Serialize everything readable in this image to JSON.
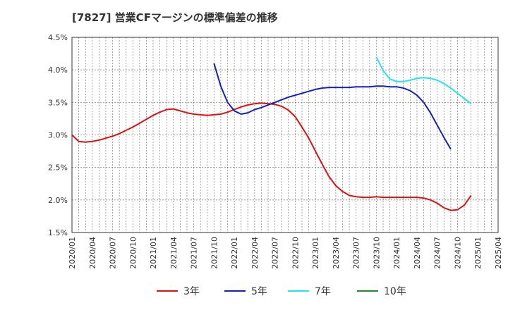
{
  "chart_data": {
    "type": "line",
    "title": "[7827]  営業CFマージンの標準偏差の推移",
    "xlabel": "",
    "ylabel": "",
    "ylim": [
      1.5,
      4.5
    ],
    "yticks": [
      1.5,
      2.0,
      2.5,
      3.0,
      3.5,
      4.0,
      4.5
    ],
    "ytick_labels": [
      "1.5%",
      "2.0%",
      "2.5%",
      "3.0%",
      "3.5%",
      "4.0%",
      "4.5%"
    ],
    "x_start": "2020/01",
    "x_end": "2025/04",
    "xtick_labels": [
      "2020/01",
      "2020/04",
      "2020/07",
      "2020/10",
      "2021/01",
      "2021/04",
      "2021/07",
      "2021/10",
      "2022/01",
      "2022/04",
      "2022/07",
      "2022/10",
      "2023/01",
      "2023/04",
      "2023/07",
      "2023/10",
      "2024/01",
      "2024/04",
      "2024/07",
      "2024/10",
      "2025/01",
      "2025/04"
    ],
    "grid": true,
    "legend_position": "bottom",
    "series": [
      {
        "name": "3年",
        "color": "#dd1111",
        "start": "2020/01",
        "values": [
          3.0,
          2.9,
          2.89,
          2.9,
          2.92,
          2.95,
          2.98,
          3.02,
          3.07,
          3.12,
          3.18,
          3.24,
          3.3,
          3.35,
          3.39,
          3.4,
          3.37,
          3.34,
          3.32,
          3.31,
          3.3,
          3.31,
          3.32,
          3.35,
          3.39,
          3.43,
          3.46,
          3.48,
          3.49,
          3.48,
          3.47,
          3.44,
          3.38,
          3.28,
          3.12,
          2.95,
          2.75,
          2.55,
          2.36,
          2.22,
          2.13,
          2.07,
          2.05,
          2.04,
          2.04,
          2.05,
          2.04,
          2.04,
          2.04,
          2.04,
          2.04,
          2.04,
          2.03,
          2.0,
          1.95,
          1.88,
          1.84,
          1.85,
          1.92,
          2.07
        ]
      },
      {
        "name": "5年",
        "color": "#1122bb",
        "start": "2021/10",
        "values": [
          4.1,
          3.75,
          3.5,
          3.37,
          3.32,
          3.34,
          3.39,
          3.42,
          3.46,
          3.5,
          3.54,
          3.58,
          3.61,
          3.64,
          3.67,
          3.7,
          3.72,
          3.73,
          3.73,
          3.73,
          3.73,
          3.74,
          3.74,
          3.74,
          3.75,
          3.75,
          3.74,
          3.74,
          3.72,
          3.68,
          3.61,
          3.5,
          3.34,
          3.15,
          2.96,
          2.78
        ]
      },
      {
        "name": "7年",
        "color": "#22e5f0",
        "start": "2023/10",
        "values": [
          4.2,
          3.99,
          3.86,
          3.82,
          3.82,
          3.84,
          3.87,
          3.88,
          3.87,
          3.84,
          3.79,
          3.72,
          3.64,
          3.56,
          3.48
        ]
      },
      {
        "name": "10年",
        "color": "#228b22",
        "start": "2024/10",
        "values": []
      }
    ]
  }
}
